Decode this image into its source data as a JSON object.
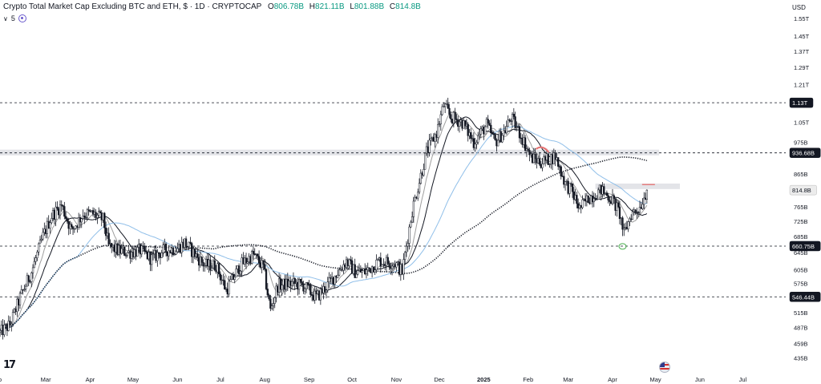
{
  "header": {
    "title": "Crypto Total Market Cap Excluding BTC and ETH, $ · 1D · CRYPTOCAP",
    "ohlc": [
      {
        "k": "O",
        "v": "806.78B"
      },
      {
        "k": "H",
        "v": "821.11B"
      },
      {
        "k": "L",
        "v": "801.88B"
      },
      {
        "k": "C",
        "v": "814.8B"
      }
    ],
    "indicator_count": "5"
  },
  "currency": "USD",
  "colors": {
    "up": "#089981",
    "candle": "#131722",
    "ma_blue": "#90bfe9",
    "ma_gray": "#9e9e9e",
    "ma_dark": "#131722",
    "dashed": "#131722",
    "zone": "#d7d9de",
    "marker_red": "#e57373",
    "marker_green": "#4caf50"
  },
  "chart_data": {
    "type": "candlestick",
    "scale": "log",
    "ylim": [
      410,
      1650
    ],
    "xlim": [
      "2024-01-29",
      "2025-07-31"
    ],
    "y_ticks": [
      {
        "label": "1.55T",
        "v": 1550
      },
      {
        "label": "1.45T",
        "v": 1450
      },
      {
        "label": "1.37T",
        "v": 1370
      },
      {
        "label": "1.29T",
        "v": 1290
      },
      {
        "label": "1.21T",
        "v": 1210
      },
      {
        "label": "1.05T",
        "v": 1050
      },
      {
        "label": "975B",
        "v": 975
      },
      {
        "label": "865B",
        "v": 865
      },
      {
        "label": "765B",
        "v": 765
      },
      {
        "label": "725B",
        "v": 725
      },
      {
        "label": "685B",
        "v": 685
      },
      {
        "label": "645B",
        "v": 645
      },
      {
        "label": "605B",
        "v": 605
      },
      {
        "label": "575B",
        "v": 575
      },
      {
        "label": "515B",
        "v": 515
      },
      {
        "label": "487B",
        "v": 487
      },
      {
        "label": "459B",
        "v": 459
      },
      {
        "label": "435B",
        "v": 435
      }
    ],
    "x_ticks": [
      {
        "label": "b",
        "date": "2024-01-29"
      },
      {
        "label": "Mar",
        "date": "2024-03-01"
      },
      {
        "label": "Apr",
        "date": "2024-04-01"
      },
      {
        "label": "May",
        "date": "2024-05-01"
      },
      {
        "label": "Jun",
        "date": "2024-06-01"
      },
      {
        "label": "Jul",
        "date": "2024-07-01"
      },
      {
        "label": "Aug",
        "date": "2024-08-01"
      },
      {
        "label": "Sep",
        "date": "2024-09-01"
      },
      {
        "label": "Oct",
        "date": "2024-10-01"
      },
      {
        "label": "Nov",
        "date": "2024-11-01"
      },
      {
        "label": "Dec",
        "date": "2024-12-01"
      },
      {
        "label": "2025",
        "date": "2025-01-01",
        "bold": true
      },
      {
        "label": "Feb",
        "date": "2025-02-01"
      },
      {
        "label": "Mar",
        "date": "2025-03-01"
      },
      {
        "label": "Apr",
        "date": "2025-04-01"
      },
      {
        "label": "May",
        "date": "2025-05-01"
      },
      {
        "label": "Jun",
        "date": "2025-06-01"
      },
      {
        "label": "Jul",
        "date": "2025-07-01"
      }
    ],
    "horizontal_levels": [
      {
        "label": "1.13T",
        "v": 1130
      },
      {
        "label": "936.68B",
        "v": 936.68
      },
      {
        "label": "660.75B",
        "v": 660.75
      },
      {
        "label": "546.44B",
        "v": 546.44
      }
    ],
    "last_price": {
      "label": "814.8B",
      "v": 814.8
    },
    "anchor_closes": [
      [
        "2024-01-29",
        478
      ],
      [
        "2024-02-05",
        492
      ],
      [
        "2024-02-12",
        545
      ],
      [
        "2024-02-20",
        600
      ],
      [
        "2024-02-28",
        685
      ],
      [
        "2024-03-05",
        740
      ],
      [
        "2024-03-12",
        770
      ],
      [
        "2024-03-19",
        700
      ],
      [
        "2024-03-27",
        745
      ],
      [
        "2024-04-03",
        745
      ],
      [
        "2024-04-10",
        730
      ],
      [
        "2024-04-14",
        660
      ],
      [
        "2024-04-20",
        650
      ],
      [
        "2024-04-28",
        645
      ],
      [
        "2024-05-06",
        650
      ],
      [
        "2024-05-14",
        630
      ],
      [
        "2024-05-22",
        650
      ],
      [
        "2024-06-01",
        655
      ],
      [
        "2024-06-06",
        670
      ],
      [
        "2024-06-12",
        645
      ],
      [
        "2024-06-20",
        615
      ],
      [
        "2024-06-28",
        615
      ],
      [
        "2024-07-05",
        560
      ],
      [
        "2024-07-15",
        615
      ],
      [
        "2024-07-24",
        640
      ],
      [
        "2024-07-31",
        610
      ],
      [
        "2024-08-05",
        520
      ],
      [
        "2024-08-10",
        570
      ],
      [
        "2024-08-20",
        575
      ],
      [
        "2024-08-28",
        570
      ],
      [
        "2024-09-06",
        545
      ],
      [
        "2024-09-15",
        575
      ],
      [
        "2024-09-27",
        625
      ],
      [
        "2024-10-03",
        600
      ],
      [
        "2024-10-10",
        600
      ],
      [
        "2024-10-20",
        625
      ],
      [
        "2024-10-31",
        620
      ],
      [
        "2024-11-05",
        600
      ],
      [
        "2024-11-12",
        755
      ],
      [
        "2024-11-22",
        940
      ],
      [
        "2024-11-29",
        1010
      ],
      [
        "2024-12-04",
        1120
      ],
      [
        "2024-12-09",
        1070
      ],
      [
        "2024-12-17",
        1050
      ],
      [
        "2024-12-25",
        975
      ],
      [
        "2025-01-03",
        1040
      ],
      [
        "2025-01-09",
        975
      ],
      [
        "2025-01-16",
        1020
      ],
      [
        "2025-01-20",
        1070
      ],
      [
        "2025-01-27",
        1000
      ],
      [
        "2025-02-03",
        920
      ],
      [
        "2025-02-10",
        905
      ],
      [
        "2025-02-20",
        925
      ],
      [
        "2025-02-27",
        835
      ],
      [
        "2025-03-03",
        815
      ],
      [
        "2025-03-09",
        760
      ],
      [
        "2025-03-15",
        790
      ],
      [
        "2025-03-24",
        815
      ],
      [
        "2025-04-01",
        785
      ],
      [
        "2025-04-06",
        745
      ],
      [
        "2025-04-09",
        690
      ],
      [
        "2025-04-14",
        745
      ],
      [
        "2025-04-20",
        765
      ],
      [
        "2025-04-25",
        814.8
      ]
    ],
    "moving_averages": [
      {
        "id": "ma-short",
        "color": "#9e9e9e",
        "style": "solid",
        "period": 10
      },
      {
        "id": "ma-mid",
        "color": "#131722",
        "style": "solid",
        "period": 20
      },
      {
        "id": "ma-long",
        "color": "#90bfe9",
        "style": "solid",
        "period": 55
      },
      {
        "id": "ma-dotted",
        "color": "#131722",
        "style": "dotted",
        "period": 150
      }
    ],
    "annotations": [
      {
        "type": "red-mark",
        "date": "2025-02-11",
        "v": 950
      },
      {
        "type": "red-target",
        "date": "2025-04-25",
        "v": 832
      },
      {
        "type": "green-circle",
        "date": "2025-04-08",
        "v": 660
      }
    ]
  }
}
